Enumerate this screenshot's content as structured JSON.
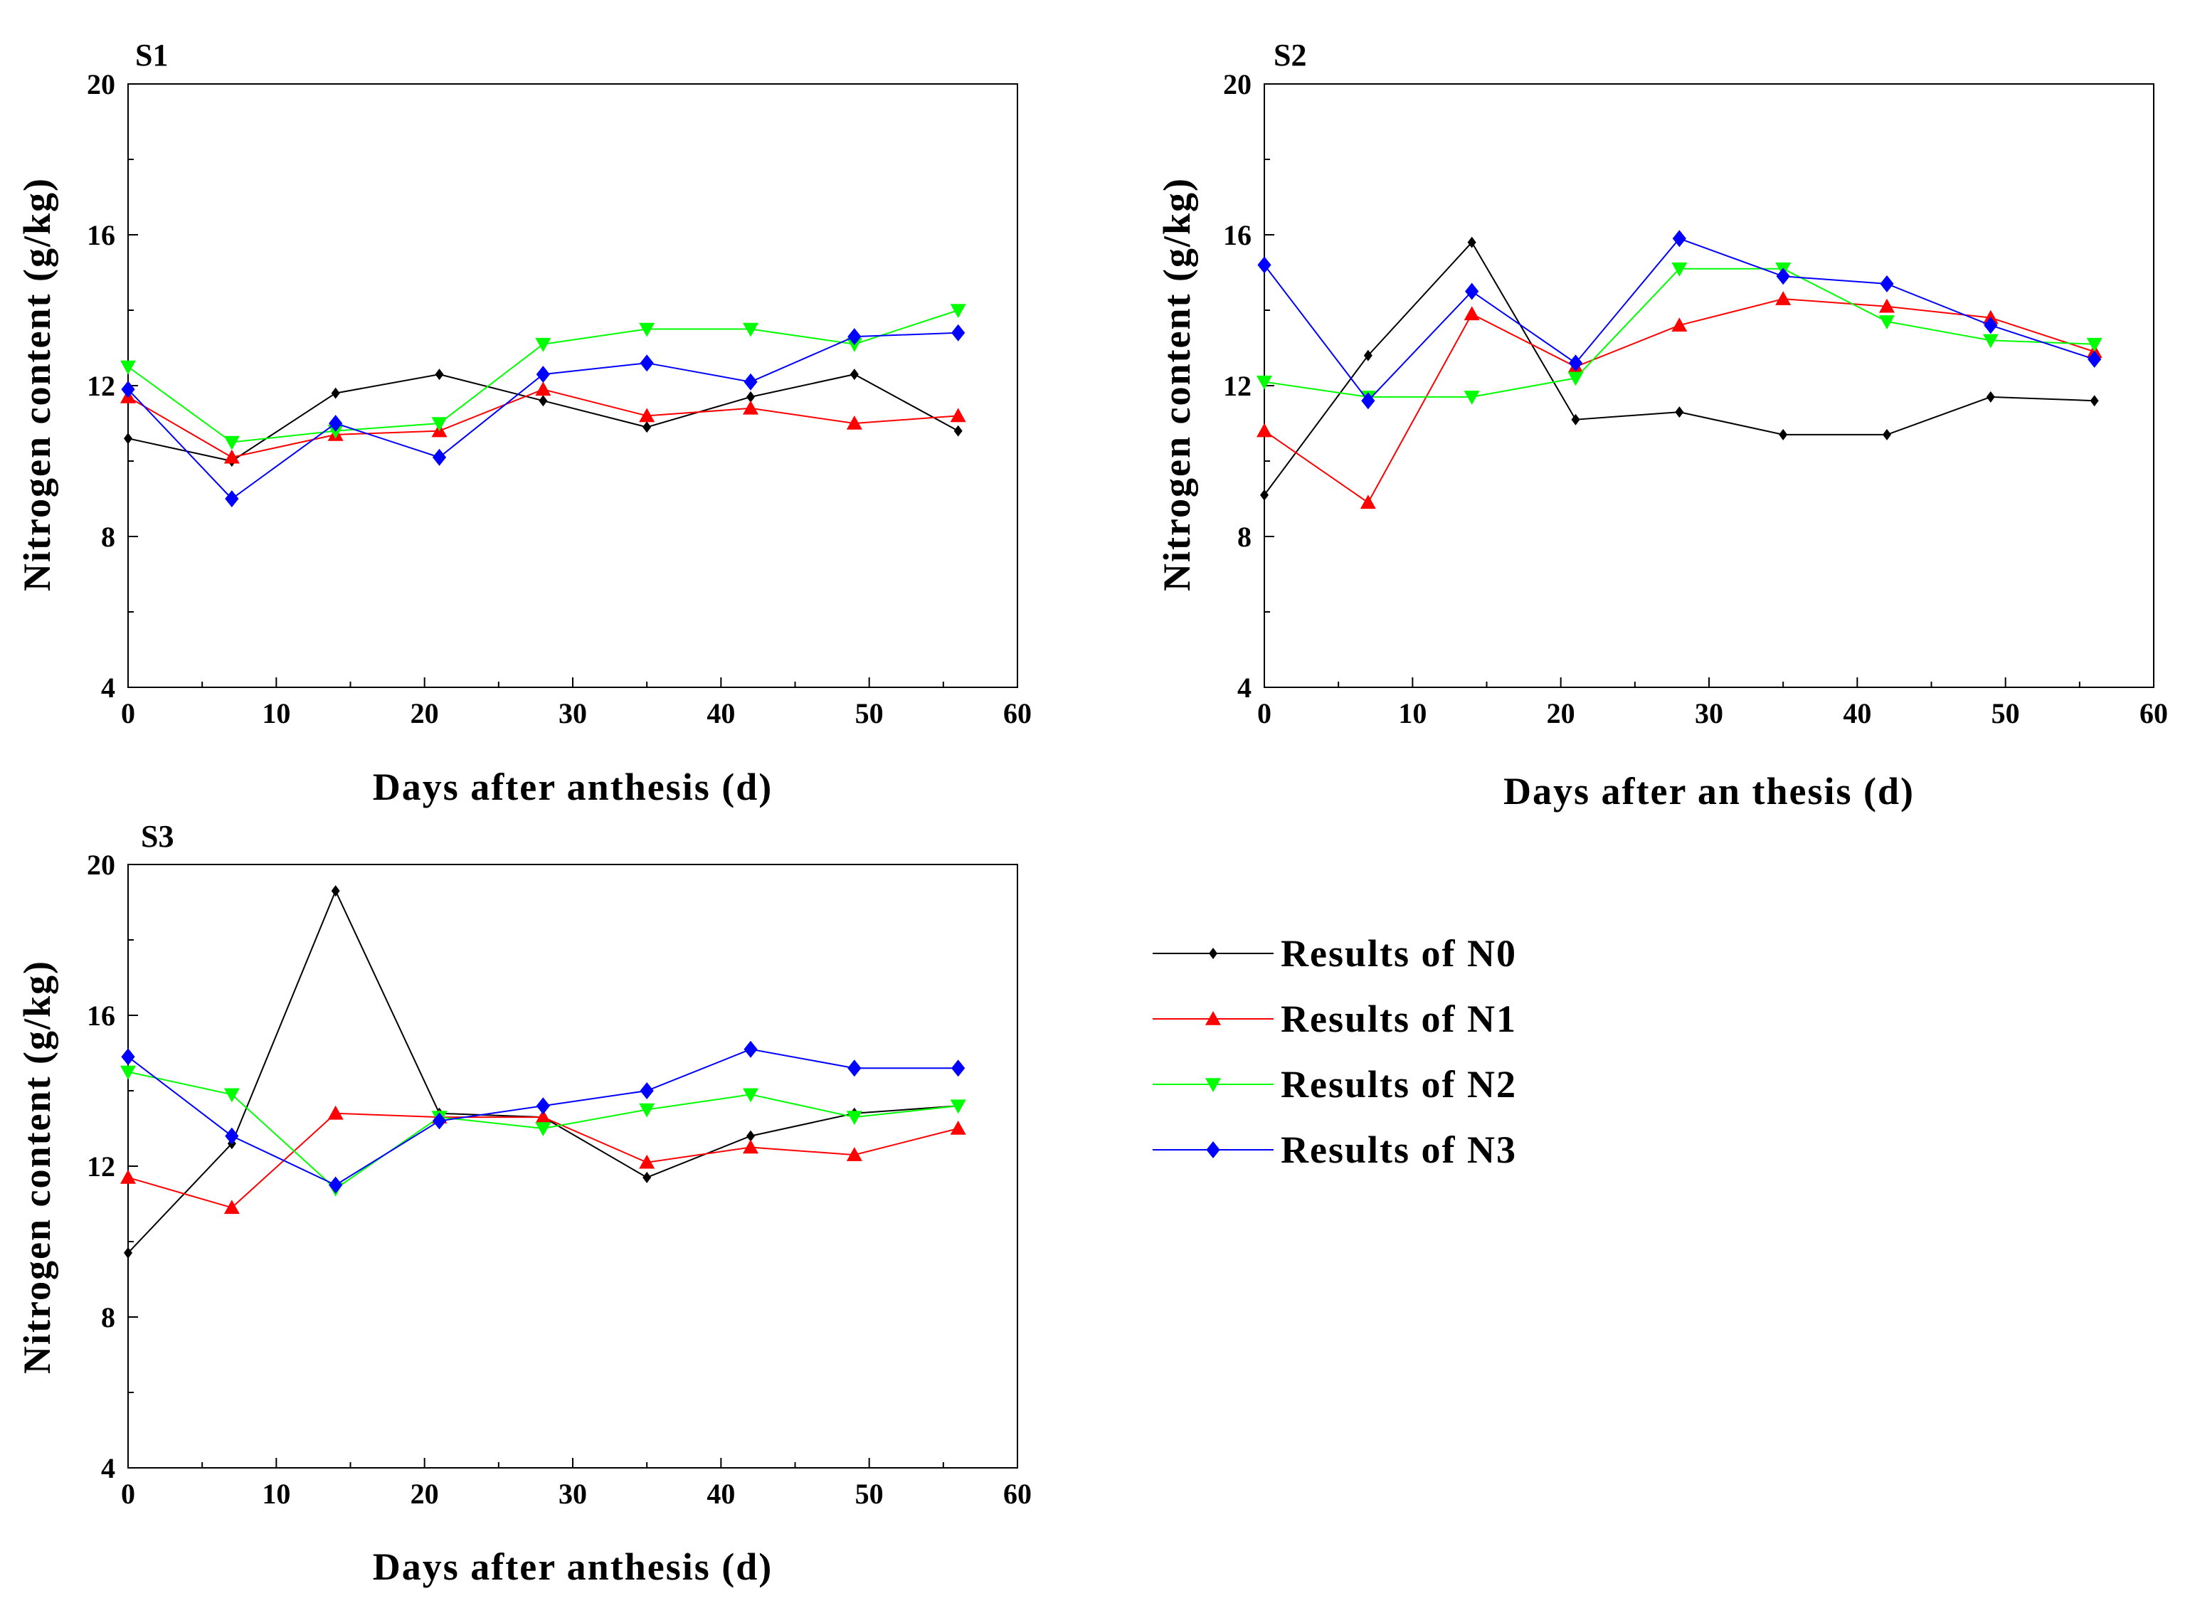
{
  "legend": {
    "placement": "right-of-S3",
    "entries": [
      {
        "label": "Results of  N0",
        "color": "#000000",
        "marker": "diamond-small"
      },
      {
        "label": "Results of  N1",
        "color": "#ff0000",
        "marker": "triangle-up"
      },
      {
        "label": "Results of  N2",
        "color": "#00ff00",
        "marker": "triangle-down"
      },
      {
        "label": "Results of  N3",
        "color": "#0000ff",
        "marker": "diamond"
      }
    ]
  },
  "chart_data": [
    {
      "type": "line",
      "title": "S1",
      "xlabel": "Days after anthesis (d)",
      "ylabel": "Nitrogen content  (g/kg)",
      "xlim": [
        0,
        60
      ],
      "ylim": [
        4,
        20
      ],
      "xticks": [
        0,
        10,
        20,
        30,
        40,
        50,
        60
      ],
      "yticks": [
        4,
        8,
        12,
        16,
        20
      ],
      "grid": false,
      "x": [
        0,
        7,
        14,
        21,
        28,
        35,
        42,
        49,
        56
      ],
      "series": [
        {
          "name": "Results of  N0",
          "values": [
            10.6,
            10.0,
            11.8,
            12.3,
            11.6,
            10.9,
            11.7,
            12.3,
            10.8
          ]
        },
        {
          "name": "Results of  N1",
          "values": [
            11.7,
            10.1,
            10.7,
            10.8,
            11.9,
            11.2,
            11.4,
            11.0,
            11.2
          ]
        },
        {
          "name": "Results of  N2",
          "values": [
            12.5,
            10.5,
            10.8,
            11.0,
            13.1,
            13.5,
            13.5,
            13.1,
            14.0
          ]
        },
        {
          "name": "Results of  N3",
          "values": [
            11.9,
            9.0,
            11.0,
            10.1,
            12.3,
            12.6,
            12.1,
            13.3,
            13.4
          ]
        }
      ]
    },
    {
      "type": "line",
      "title": "S2",
      "xlabel": "Days after an thesis  (d)",
      "ylabel": "Nitrogen content  (g/kg)",
      "xlim": [
        0,
        60
      ],
      "ylim": [
        4,
        20
      ],
      "xticks": [
        0,
        10,
        20,
        30,
        40,
        50,
        60
      ],
      "yticks": [
        4,
        8,
        12,
        16,
        20
      ],
      "grid": false,
      "x": [
        0,
        7,
        14,
        21,
        28,
        35,
        42,
        49,
        56
      ],
      "series": [
        {
          "name": "Results of  N0",
          "values": [
            9.1,
            12.8,
            15.8,
            11.1,
            11.3,
            10.7,
            10.7,
            11.7,
            11.6
          ]
        },
        {
          "name": "Results of  N1",
          "values": [
            10.8,
            8.9,
            13.9,
            12.5,
            13.6,
            14.3,
            14.1,
            13.8,
            12.9
          ]
        },
        {
          "name": "Results of  N2",
          "values": [
            12.1,
            11.7,
            11.7,
            12.2,
            15.1,
            15.1,
            13.7,
            13.2,
            13.1
          ]
        },
        {
          "name": "Results of  N3",
          "values": [
            15.2,
            11.6,
            14.5,
            12.6,
            15.9,
            14.9,
            14.7,
            13.6,
            12.7
          ]
        }
      ]
    },
    {
      "type": "line",
      "title": "S3",
      "xlabel": "Days after anthesis (d)",
      "ylabel": "Nitrogen content  (g/kg)",
      "xlim": [
        0,
        60
      ],
      "ylim": [
        4,
        20
      ],
      "xticks": [
        0,
        10,
        20,
        30,
        40,
        50,
        60
      ],
      "yticks": [
        4,
        8,
        12,
        16,
        20
      ],
      "grid": false,
      "x": [
        0,
        7,
        14,
        21,
        28,
        35,
        42,
        49,
        56
      ],
      "series": [
        {
          "name": "Results of  N0",
          "values": [
            9.7,
            12.6,
            19.3,
            13.4,
            13.3,
            11.7,
            12.8,
            13.4,
            13.6
          ]
        },
        {
          "name": "Results of  N1",
          "values": [
            11.7,
            10.9,
            13.4,
            13.3,
            13.3,
            12.1,
            12.5,
            12.3,
            13.0
          ]
        },
        {
          "name": "Results of  N2",
          "values": [
            14.5,
            13.9,
            11.4,
            13.3,
            13.0,
            13.5,
            13.9,
            13.3,
            13.6
          ]
        },
        {
          "name": "Results of  N3",
          "values": [
            14.9,
            12.8,
            11.5,
            13.2,
            13.6,
            14.0,
            15.1,
            14.6,
            14.6
          ]
        }
      ]
    }
  ]
}
